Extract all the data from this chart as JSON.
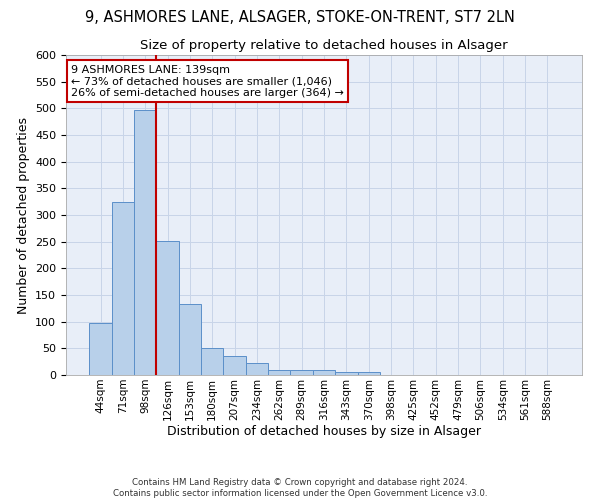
{
  "title1": "9, ASHMORES LANE, ALSAGER, STOKE-ON-TRENT, ST7 2LN",
  "title2": "Size of property relative to detached houses in Alsager",
  "xlabel": "Distribution of detached houses by size in Alsager",
  "ylabel": "Number of detached properties",
  "categories": [
    "44sqm",
    "71sqm",
    "98sqm",
    "126sqm",
    "153sqm",
    "180sqm",
    "207sqm",
    "234sqm",
    "262sqm",
    "289sqm",
    "316sqm",
    "343sqm",
    "370sqm",
    "398sqm",
    "425sqm",
    "452sqm",
    "479sqm",
    "506sqm",
    "534sqm",
    "561sqm",
    "588sqm"
  ],
  "values": [
    97,
    325,
    497,
    251,
    134,
    51,
    36,
    22,
    10,
    10,
    10,
    6,
    5,
    0,
    0,
    0,
    0,
    0,
    0,
    0,
    0
  ],
  "bar_color": "#b8d0ea",
  "bar_edge_color": "#5b8fc9",
  "vline_color": "#c00000",
  "annotation_line1": "9 ASHMORES LANE: 139sqm",
  "annotation_line2": "← 73% of detached houses are smaller (1,046)",
  "annotation_line3": "26% of semi-detached houses are larger (364) →",
  "annotation_box_color": "#ffffff",
  "annotation_box_edge": "#c00000",
  "footer": "Contains HM Land Registry data © Crown copyright and database right 2024.\nContains public sector information licensed under the Open Government Licence v3.0.",
  "ylim": [
    0,
    600
  ],
  "background_color": "#ffffff",
  "axes_bg_color": "#e8eef8",
  "grid_color": "#c8d4e8",
  "title_fontsize": 10.5,
  "subtitle_fontsize": 9.5,
  "axis_label_fontsize": 9,
  "tick_fontsize": 8,
  "annotation_fontsize": 8
}
